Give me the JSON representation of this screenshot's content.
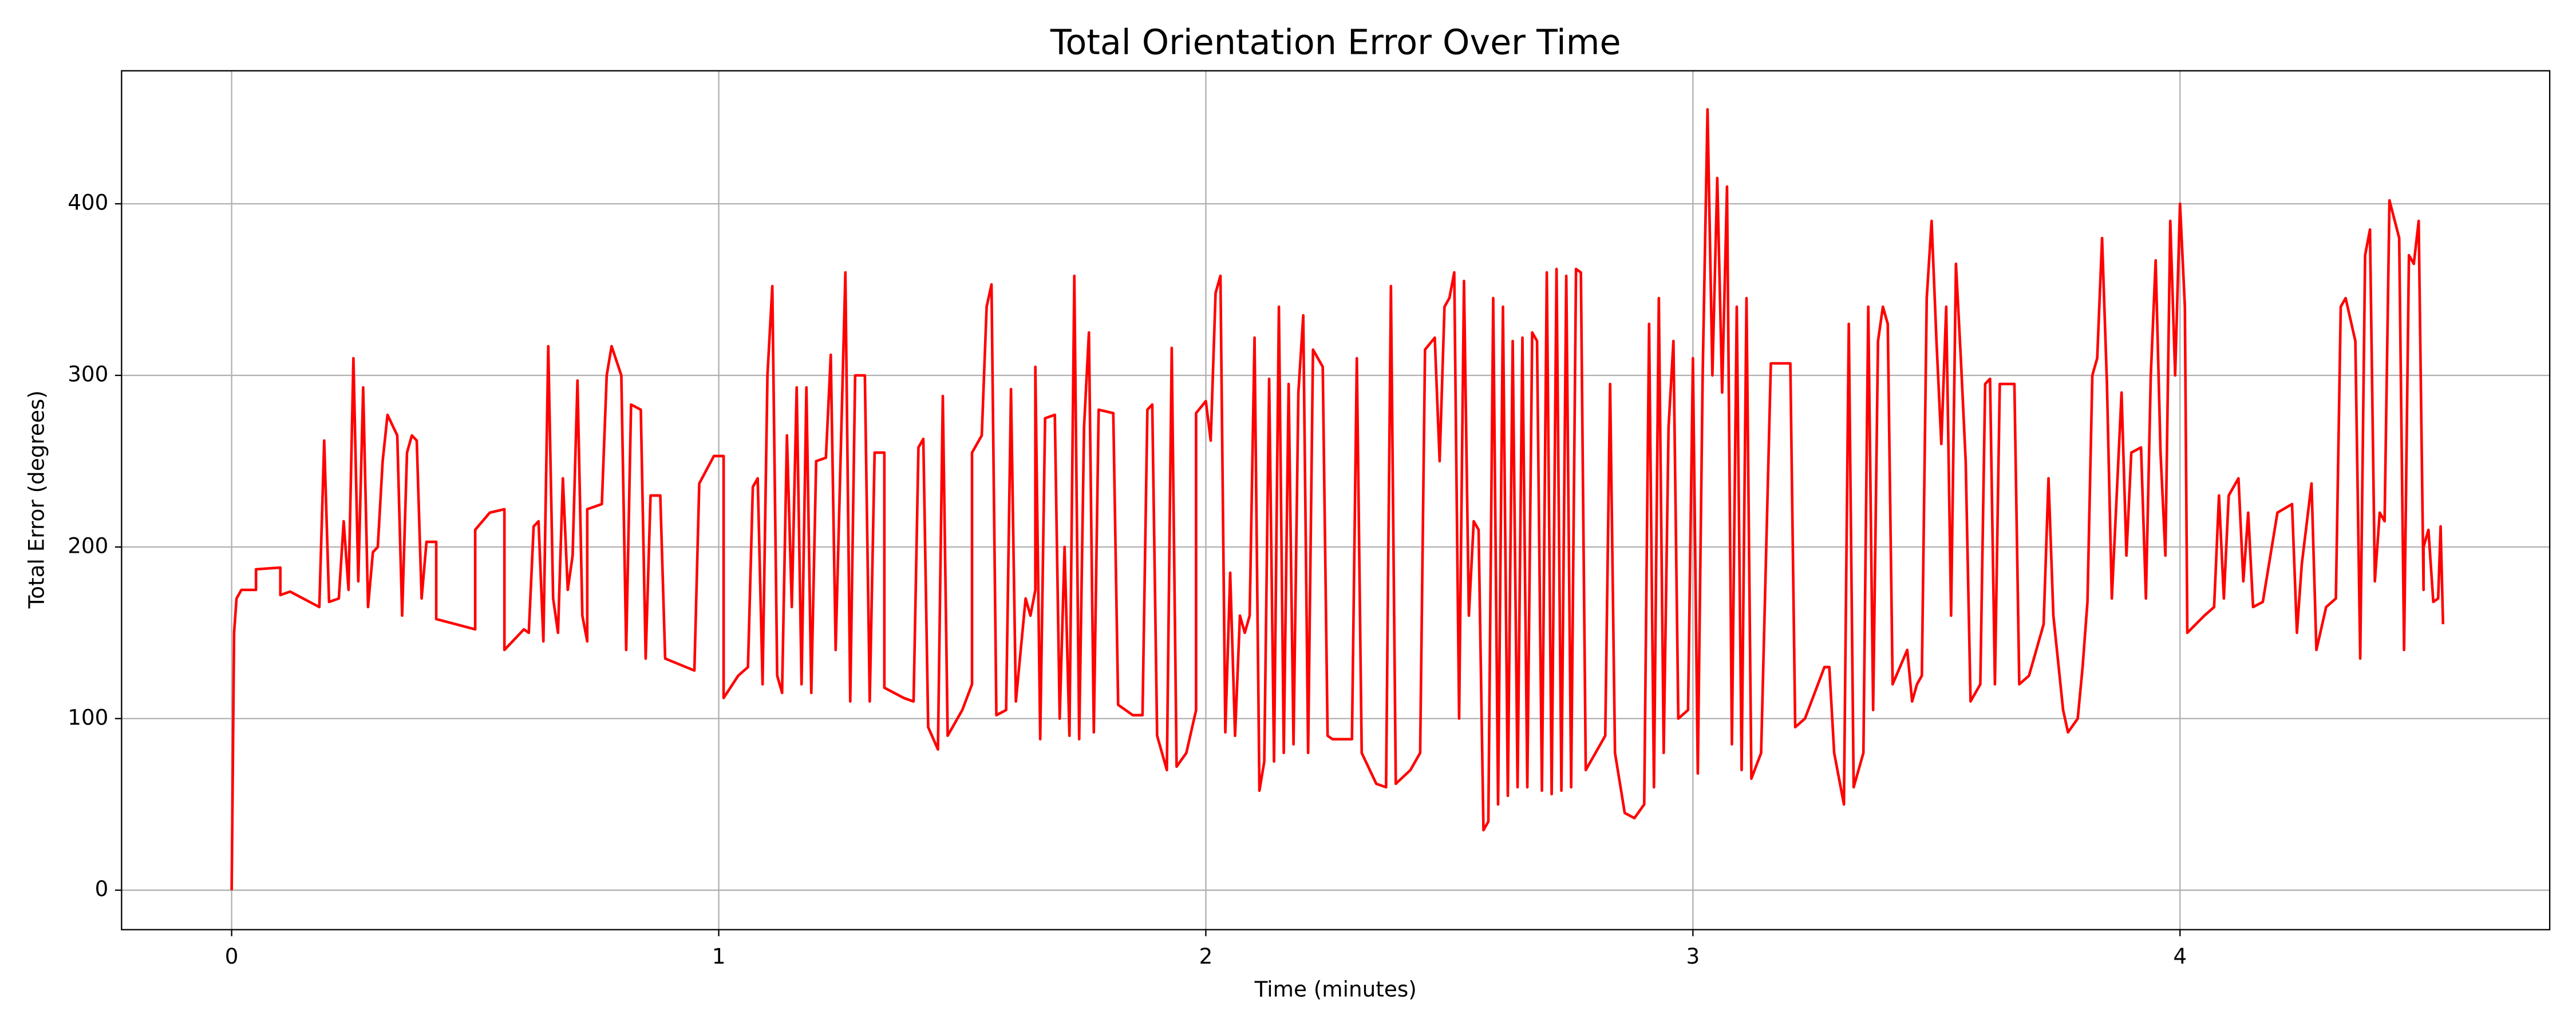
{
  "chart_data": {
    "type": "line",
    "title": "Total Orientation Error Over Time",
    "x_label": "Time (minutes)",
    "y_label": "Total Error (degrees)",
    "xlim": [
      -0.226,
      4.759
    ],
    "ylim": [
      -23,
      477.5
    ],
    "xticks": [
      0,
      1,
      2,
      3,
      4
    ],
    "yticks": [
      0,
      100,
      200,
      300,
      400
    ],
    "grid": true,
    "x": [
      0,
      0.005,
      0.01,
      0.02,
      0.05,
      0.05,
      0.1,
      0.1,
      0.12,
      0.16,
      0.18,
      0.19,
      0.2,
      0.22,
      0.23,
      0.24,
      0.25,
      0.26,
      0.27,
      0.28,
      0.29,
      0.3,
      0.31,
      0.32,
      0.34,
      0.35,
      0.36,
      0.37,
      0.38,
      0.39,
      0.4,
      0.42,
      0.42,
      0.5,
      0.5,
      0.53,
      0.56,
      0.56,
      0.6,
      0.61,
      0.62,
      0.63,
      0.64,
      0.65,
      0.66,
      0.67,
      0.68,
      0.69,
      0.7,
      0.71,
      0.72,
      0.73,
      0.73,
      0.76,
      0.77,
      0.78,
      0.8,
      0.81,
      0.82,
      0.84,
      0.85,
      0.86,
      0.88,
      0.89,
      0.95,
      0.96,
      0.99,
      1.01,
      1.01,
      1.04,
      1.06,
      1.07,
      1.08,
      1.09,
      1.1,
      1.11,
      1.12,
      1.13,
      1.14,
      1.15,
      1.16,
      1.17,
      1.18,
      1.19,
      1.2,
      1.22,
      1.23,
      1.24,
      1.25,
      1.26,
      1.27,
      1.28,
      1.3,
      1.31,
      1.32,
      1.34,
      1.34,
      1.38,
      1.4,
      1.41,
      1.42,
      1.43,
      1.45,
      1.46,
      1.47,
      1.5,
      1.52,
      1.52,
      1.54,
      1.55,
      1.56,
      1.57,
      1.59,
      1.6,
      1.61,
      1.63,
      1.64,
      1.65,
      1.65,
      1.66,
      1.67,
      1.69,
      1.7,
      1.71,
      1.72,
      1.73,
      1.74,
      1.75,
      1.76,
      1.77,
      1.78,
      1.81,
      1.82,
      1.85,
      1.87,
      1.88,
      1.89,
      1.9,
      1.92,
      1.93,
      1.94,
      1.96,
      1.98,
      1.98,
      2.0,
      2.01,
      2.02,
      2.03,
      2.04,
      2.05,
      2.06,
      2.07,
      2.08,
      2.09,
      2.1,
      2.11,
      2.12,
      2.13,
      2.14,
      2.15,
      2.16,
      2.17,
      2.18,
      2.19,
      2.2,
      2.21,
      2.22,
      2.24,
      2.25,
      2.26,
      2.3,
      2.31,
      2.32,
      2.35,
      2.37,
      2.38,
      2.39,
      2.42,
      2.44,
      2.45,
      2.47,
      2.48,
      2.49,
      2.5,
      2.51,
      2.52,
      2.53,
      2.54,
      2.55,
      2.56,
      2.57,
      2.58,
      2.59,
      2.6,
      2.61,
      2.62,
      2.63,
      2.64,
      2.65,
      2.66,
      2.67,
      2.68,
      2.69,
      2.7,
      2.71,
      2.72,
      2.73,
      2.74,
      2.75,
      2.76,
      2.77,
      2.78,
      2.8,
      2.82,
      2.83,
      2.84,
      2.86,
      2.88,
      2.9,
      2.91,
      2.92,
      2.93,
      2.94,
      2.95,
      2.96,
      2.97,
      2.99,
      3.0,
      3.01,
      3.02,
      3.03,
      3.04,
      3.05,
      3.06,
      3.07,
      3.08,
      3.09,
      3.1,
      3.11,
      3.12,
      3.14,
      3.16,
      3.2,
      3.21,
      3.23,
      3.25,
      3.27,
      3.28,
      3.29,
      3.31,
      3.32,
      3.33,
      3.35,
      3.36,
      3.37,
      3.38,
      3.39,
      3.4,
      3.41,
      3.44,
      3.45,
      3.46,
      3.47,
      3.48,
      3.49,
      3.5,
      3.51,
      3.52,
      3.53,
      3.54,
      3.55,
      3.56,
      3.57,
      3.59,
      3.6,
      3.61,
      3.62,
      3.63,
      3.66,
      3.67,
      3.69,
      3.72,
      3.73,
      3.74,
      3.76,
      3.77,
      3.79,
      3.8,
      3.81,
      3.82,
      3.83,
      3.84,
      3.85,
      3.86,
      3.88,
      3.89,
      3.9,
      3.92,
      3.93,
      3.94,
      3.95,
      3.96,
      3.97,
      3.98,
      3.99,
      4.0,
      4.01,
      4.015,
      4.05,
      4.07,
      4.08,
      4.09,
      4.1,
      4.12,
      4.13,
      4.14,
      4.15,
      4.17,
      4.2,
      4.23,
      4.24,
      4.25,
      4.27,
      4.28,
      4.3,
      4.32,
      4.33,
      4.34,
      4.36,
      4.37,
      4.38,
      4.39,
      4.4,
      4.41,
      4.42,
      4.43,
      4.45,
      4.46,
      4.47,
      4.48,
      4.49,
      4.5,
      4.5,
      4.51,
      4.52,
      4.53,
      4.535,
      4.54
    ],
    "series": [
      {
        "name": "Total Error",
        "color": "#ff0000",
        "values": [
          0,
          150,
          170,
          175,
          175,
          187,
          188,
          172,
          174,
          168,
          165,
          262,
          168,
          170,
          215,
          175,
          310,
          180,
          293,
          165,
          197,
          200,
          250,
          277,
          265,
          160,
          255,
          265,
          262,
          170,
          203,
          203,
          158,
          152,
          210,
          220,
          222,
          140,
          152,
          150,
          212,
          215,
          145,
          317,
          170,
          150,
          240,
          175,
          195,
          297,
          160,
          145,
          222,
          225,
          300,
          317,
          300,
          140,
          283,
          280,
          135,
          230,
          230,
          135,
          128,
          237,
          253,
          253,
          112,
          125,
          130,
          235,
          240,
          120,
          300,
          352,
          125,
          115,
          265,
          165,
          293,
          120,
          293,
          115,
          250,
          252,
          312,
          140,
          250,
          360,
          110,
          300,
          300,
          110,
          255,
          255,
          118,
          112,
          110,
          258,
          263,
          95,
          82,
          288,
          90,
          105,
          120,
          255,
          265,
          340,
          353,
          102,
          105,
          292,
          110,
          170,
          160,
          175,
          305,
          88,
          275,
          277,
          100,
          200,
          90,
          358,
          88,
          270,
          325,
          92,
          280,
          278,
          108,
          102,
          102,
          280,
          283,
          90,
          70,
          316,
          72,
          80,
          105,
          278,
          285,
          262,
          348,
          358,
          92,
          185,
          90,
          160,
          150,
          160,
          322,
          58,
          75,
          298,
          75,
          340,
          80,
          295,
          85,
          290,
          335,
          80,
          315,
          305,
          90,
          88,
          88,
          310,
          80,
          62,
          60,
          352,
          62,
          70,
          80,
          315,
          322,
          250,
          340,
          345,
          360,
          100,
          355,
          160,
          215,
          210,
          35,
          40,
          345,
          50,
          340,
          55,
          320,
          60,
          322,
          60,
          325,
          320,
          58,
          360,
          56,
          362,
          58,
          358,
          60,
          362,
          360,
          70,
          80,
          90,
          295,
          80,
          45,
          42,
          50,
          330,
          60,
          345,
          80,
          270,
          320,
          100,
          105,
          310,
          68,
          300,
          455,
          300,
          415,
          290,
          410,
          85,
          340,
          70,
          345,
          65,
          80,
          307,
          307,
          95,
          100,
          115,
          130,
          130,
          80,
          50,
          330,
          60,
          80,
          340,
          105,
          320,
          340,
          330,
          120,
          140,
          110,
          120,
          125,
          345,
          390,
          320,
          260,
          340,
          160,
          365,
          310,
          250,
          110,
          120,
          295,
          298,
          120,
          295,
          295,
          120,
          125,
          155,
          240,
          160,
          105,
          92,
          100,
          130,
          168,
          300,
          310,
          380,
          295,
          170,
          290,
          195,
          255,
          258,
          170,
          300,
          367,
          255,
          195,
          390,
          300,
          400,
          340,
          150,
          160,
          165,
          230,
          170,
          230,
          240,
          180,
          220,
          165,
          168,
          220,
          225,
          150,
          190,
          237,
          140,
          165,
          170,
          340,
          345,
          320,
          135,
          370,
          385,
          180,
          220,
          215,
          402,
          380,
          140,
          370,
          365,
          390,
          175,
          200,
          210,
          168,
          170,
          212,
          155
        ]
      }
    ]
  }
}
